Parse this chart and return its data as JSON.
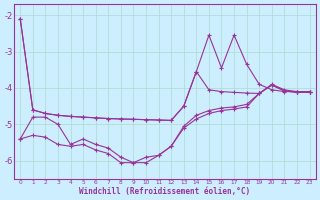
{
  "title": "",
  "xlabel": "Windchill (Refroidissement éolien,°C)",
  "bg_color": "#cceeff",
  "grid_color": "#aaddcc",
  "line_color": "#993399",
  "x": [
    0,
    1,
    2,
    3,
    4,
    5,
    6,
    7,
    8,
    9,
    10,
    11,
    12,
    13,
    14,
    15,
    16,
    17,
    18,
    19,
    20,
    21,
    22,
    23
  ],
  "line1": [
    -2.1,
    -4.6,
    -4.7,
    -4.75,
    -4.78,
    -4.8,
    -4.82,
    -4.84,
    -4.85,
    -4.86,
    -4.87,
    -4.88,
    -4.89,
    -4.5,
    -3.55,
    -4.05,
    -4.1,
    -4.12,
    -4.14,
    -4.15,
    -3.9,
    -4.05,
    -4.1,
    -4.1
  ],
  "line2": [
    -2.1,
    -4.6,
    -4.7,
    -4.75,
    -4.78,
    -4.8,
    -4.82,
    -4.84,
    -4.85,
    -4.86,
    -4.87,
    -4.88,
    -4.89,
    -4.5,
    -3.55,
    -2.55,
    -3.45,
    -2.55,
    -3.35,
    -3.9,
    -4.05,
    -4.1,
    -4.1,
    -4.1
  ],
  "line3": [
    -5.4,
    -4.8,
    -4.8,
    -5.0,
    -5.55,
    -5.4,
    -5.55,
    -5.65,
    -5.9,
    -6.05,
    -6.05,
    -5.85,
    -5.6,
    -5.1,
    -4.85,
    -4.7,
    -4.62,
    -4.58,
    -4.52,
    -4.15,
    -3.92,
    -4.08,
    -4.12,
    -4.12
  ],
  "line4": [
    -5.4,
    -5.3,
    -5.35,
    -5.55,
    -5.6,
    -5.55,
    -5.7,
    -5.8,
    -6.05,
    -6.05,
    -5.9,
    -5.85,
    -5.6,
    -5.05,
    -4.75,
    -4.62,
    -4.55,
    -4.52,
    -4.45,
    -4.15,
    -3.92,
    -4.08,
    -4.12,
    -4.12
  ],
  "ylim": [
    -6.5,
    -1.7
  ],
  "xlim": [
    -0.5,
    23.5
  ],
  "yticks": [
    -6,
    -5,
    -4,
    -3,
    -2
  ],
  "xticks": [
    0,
    1,
    2,
    3,
    4,
    5,
    6,
    7,
    8,
    9,
    10,
    11,
    12,
    13,
    14,
    15,
    16,
    17,
    18,
    19,
    20,
    21,
    22,
    23
  ]
}
